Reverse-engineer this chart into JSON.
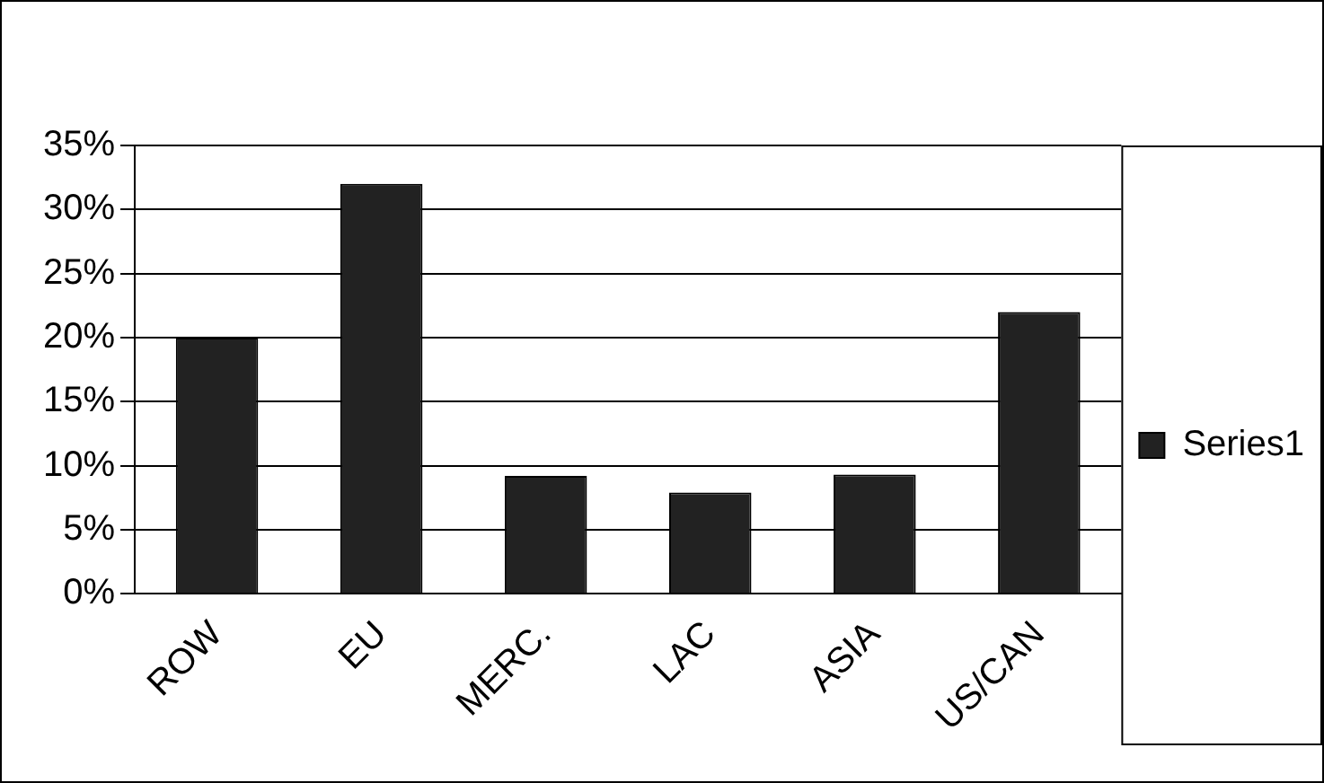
{
  "chart_data": {
    "type": "bar",
    "categories": [
      "ROW",
      "EU",
      "MERC.",
      "LAC",
      "ASIA",
      "US/CAN"
    ],
    "series": [
      {
        "name": "Series1",
        "color": "#222222",
        "values": [
          20,
          32,
          9.2,
          7.9,
          9.3,
          22
        ]
      }
    ],
    "ylim": [
      0,
      35
    ],
    "yticks": [
      {
        "value": 0,
        "label": "0%"
      },
      {
        "value": 5,
        "label": "5%"
      },
      {
        "value": 10,
        "label": "10%"
      },
      {
        "value": 15,
        "label": "15%"
      },
      {
        "value": 20,
        "label": "20%"
      },
      {
        "value": 25,
        "label": "25%"
      },
      {
        "value": 30,
        "label": "30%"
      },
      {
        "value": 35,
        "label": "35%"
      }
    ],
    "grid": "y",
    "legend": "right"
  }
}
